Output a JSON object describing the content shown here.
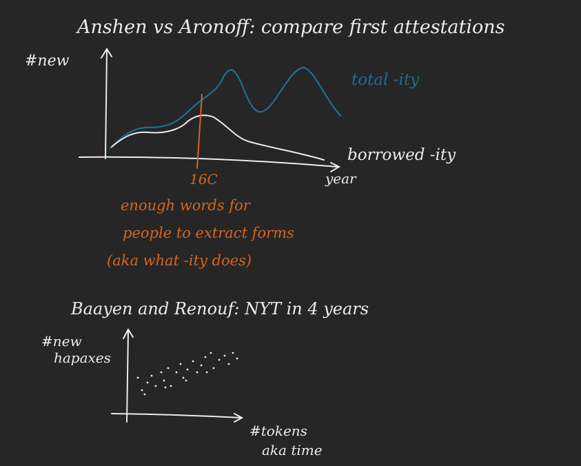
{
  "colors": {
    "background": "#262626",
    "ink_white": "#ececec",
    "ink_blue": "#1f6f8f",
    "ink_orange": "#d9651f"
  },
  "top_sketch": {
    "title": "Anshen vs Aronoff: compare first attestations",
    "y_label": "#new",
    "x_label": "year",
    "tick_label": "16C",
    "series": [
      {
        "name": "total -ity",
        "color": "#1f6f8f"
      },
      {
        "name": "borrowed -ity",
        "color": "#ececec"
      }
    ],
    "annotation": [
      "enough words for",
      "people to extract forms",
      "(aka what -ity does)"
    ]
  },
  "bottom_sketch": {
    "title": "Baayen and Renouf: NYT in 4 years",
    "y_label": [
      "#new",
      "hapaxes"
    ],
    "x_label": [
      "#tokens",
      "aka time"
    ]
  }
}
